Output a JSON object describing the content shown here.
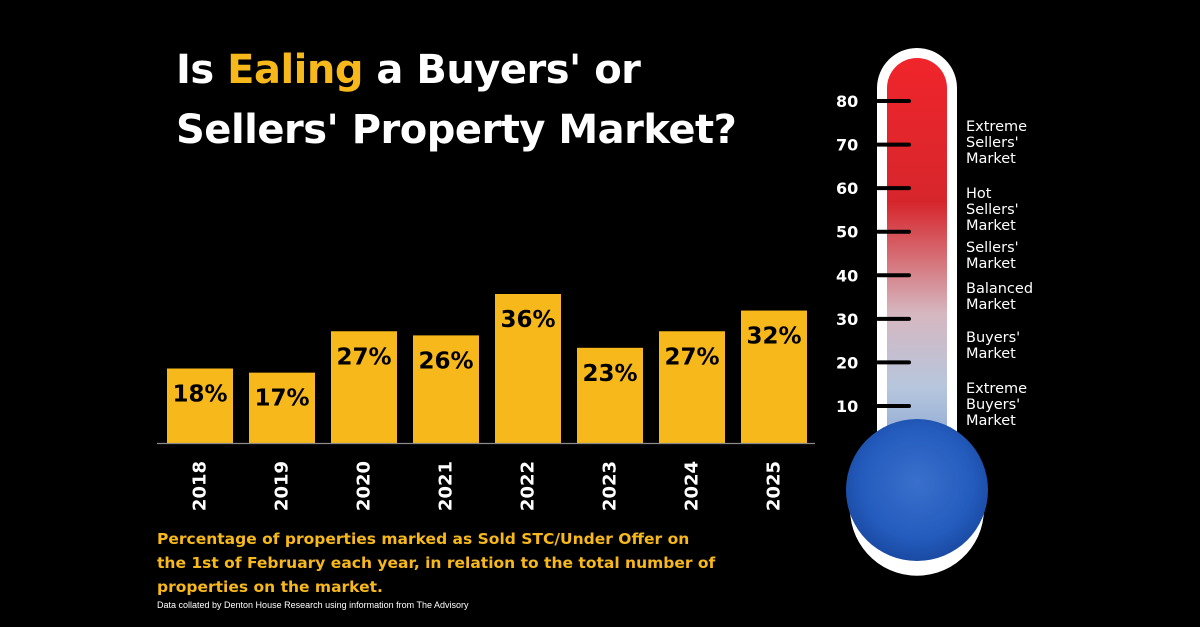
{
  "title": {
    "part1": "Is ",
    "highlight": "Ealing",
    "part2": " a Buyers' or Sellers' Property Market?"
  },
  "caption": "Percentage of properties marked as Sold STC/Under Offer on the 1st of February each year, in relation to the total number of properties on the market.",
  "source": "Data collated by Denton House Research using information from The Advisory",
  "colors": {
    "background": "#000000",
    "bar": "#f6b81a",
    "highlight_text": "#f6b81a",
    "thermo_hot": "#e8232b",
    "thermo_mid": "#c8d3e6",
    "thermo_cold": "#1f57b8"
  },
  "chart_data": {
    "type": "bar",
    "categories": [
      "2018",
      "2019",
      "2020",
      "2021",
      "2022",
      "2023",
      "2024",
      "2025"
    ],
    "values": [
      18,
      17,
      27,
      26,
      36,
      23,
      27,
      32
    ],
    "data_labels": [
      "18%",
      "17%",
      "27%",
      "26%",
      "36%",
      "23%",
      "27%",
      "32%"
    ],
    "ylim": [
      0,
      36
    ],
    "grid": false,
    "xlabel": "",
    "ylabel": ""
  },
  "thermometer": {
    "ticks": [
      "80",
      "70",
      "60",
      "50",
      "40",
      "30",
      "20",
      "10"
    ],
    "tick_values": [
      80,
      70,
      60,
      50,
      40,
      30,
      20,
      10
    ],
    "zones": [
      {
        "lines": [
          "Extreme",
          "Sellers'",
          "Market"
        ]
      },
      {
        "lines": [
          "Hot",
          "Sellers'",
          "Market"
        ]
      },
      {
        "lines": [
          "Sellers'",
          "Market"
        ]
      },
      {
        "lines": [
          "Balanced",
          "Market"
        ]
      },
      {
        "lines": [
          "Buyers'",
          "Market"
        ]
      },
      {
        "lines": [
          "Extreme",
          " Buyers'",
          "Market"
        ]
      }
    ]
  }
}
